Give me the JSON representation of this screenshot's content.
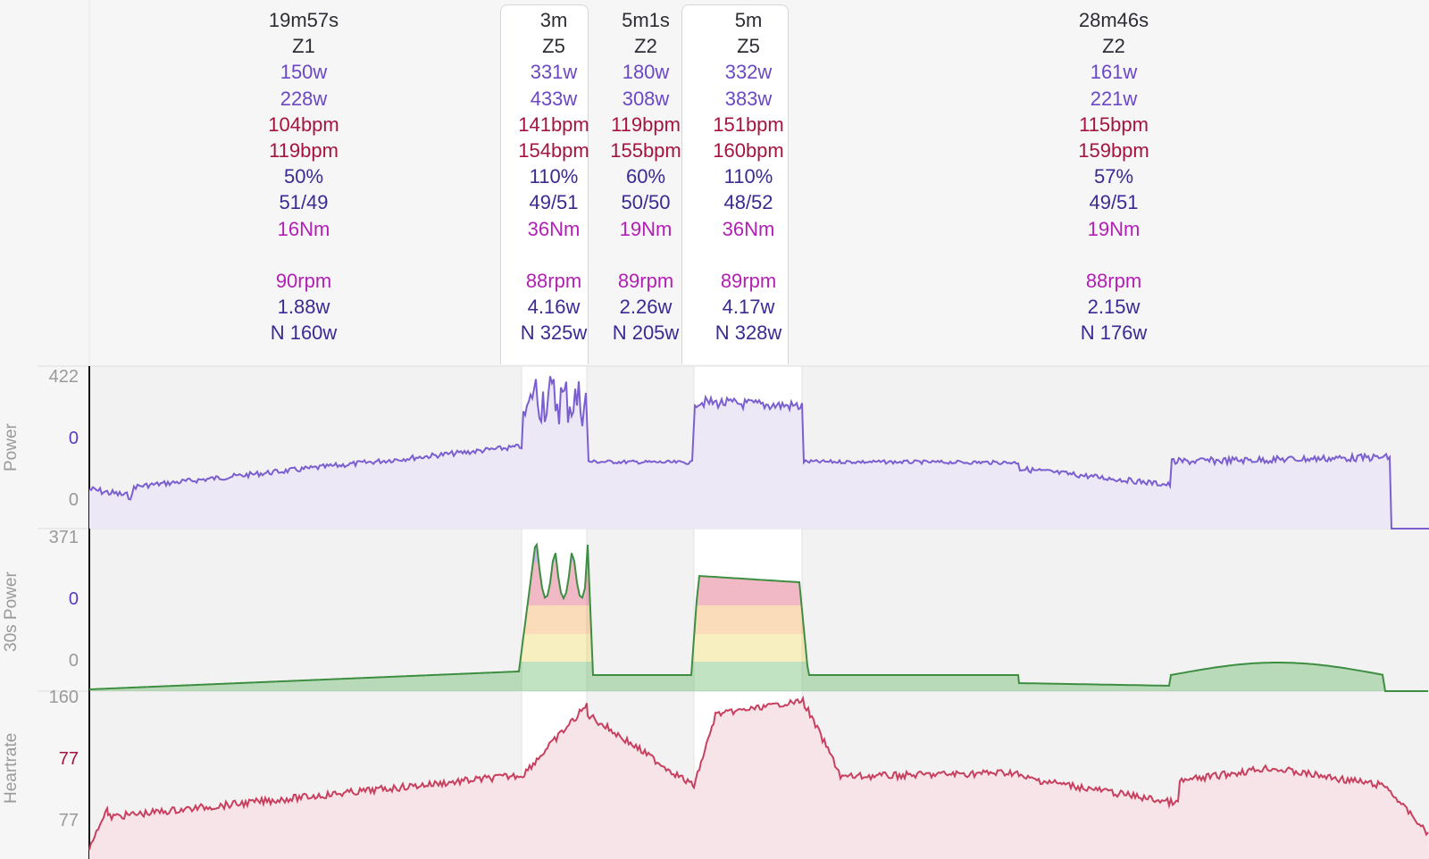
{
  "intervals": [
    {
      "duration": "19m57s",
      "zone": "Z1",
      "avg_power": "150w",
      "max_power": "228w",
      "avg_hr": "104bpm",
      "max_hr": "119bpm",
      "pct_ftp": "50%",
      "balance": "51/49",
      "torque": "16Nm",
      "cadence": "90rpm",
      "wkg": "1.88w",
      "np": "N 160w"
    },
    {
      "duration": "3m",
      "zone": "Z5",
      "avg_power": "331w",
      "max_power": "433w",
      "avg_hr": "141bpm",
      "max_hr": "154bpm",
      "pct_ftp": "110%",
      "balance": "49/51",
      "torque": "36Nm",
      "cadence": "88rpm",
      "wkg": "4.16w",
      "np": "N 325w"
    },
    {
      "duration": "5m1s",
      "zone": "Z2",
      "avg_power": "180w",
      "max_power": "308w",
      "avg_hr": "119bpm",
      "max_hr": "155bpm",
      "pct_ftp": "60%",
      "balance": "50/50",
      "torque": "19Nm",
      "cadence": "89rpm",
      "wkg": "2.26w",
      "np": "N 205w"
    },
    {
      "duration": "5m",
      "zone": "Z5",
      "avg_power": "332w",
      "max_power": "383w",
      "avg_hr": "151bpm",
      "max_hr": "160bpm",
      "pct_ftp": "110%",
      "balance": "48/52",
      "torque": "36Nm",
      "cadence": "89rpm",
      "wkg": "4.17w",
      "np": "N 328w"
    },
    {
      "duration": "28m46s",
      "zone": "Z2",
      "avg_power": "161w",
      "max_power": "221w",
      "avg_hr": "115bpm",
      "max_hr": "159bpm",
      "pct_ftp": "57%",
      "balance": "49/51",
      "torque": "19Nm",
      "cadence": "88rpm",
      "wkg": "2.15w",
      "np": "N 176w"
    }
  ],
  "charts": {
    "power": {
      "axis_title": "Power",
      "ticks": [
        "422",
        "0",
        "0"
      ],
      "color": "#7b5fd0"
    },
    "power30s": {
      "axis_title": "30s Power",
      "ticks": [
        "371",
        "0",
        "0"
      ],
      "zone_colors": [
        "#4caf50",
        "#e8d24a",
        "#f29b3c",
        "#d6375a",
        "#5a3ac0"
      ]
    },
    "heartrate": {
      "axis_title": "Heartrate",
      "ticks": [
        "160",
        "77",
        "77"
      ],
      "color": "#c8405f"
    }
  }
}
